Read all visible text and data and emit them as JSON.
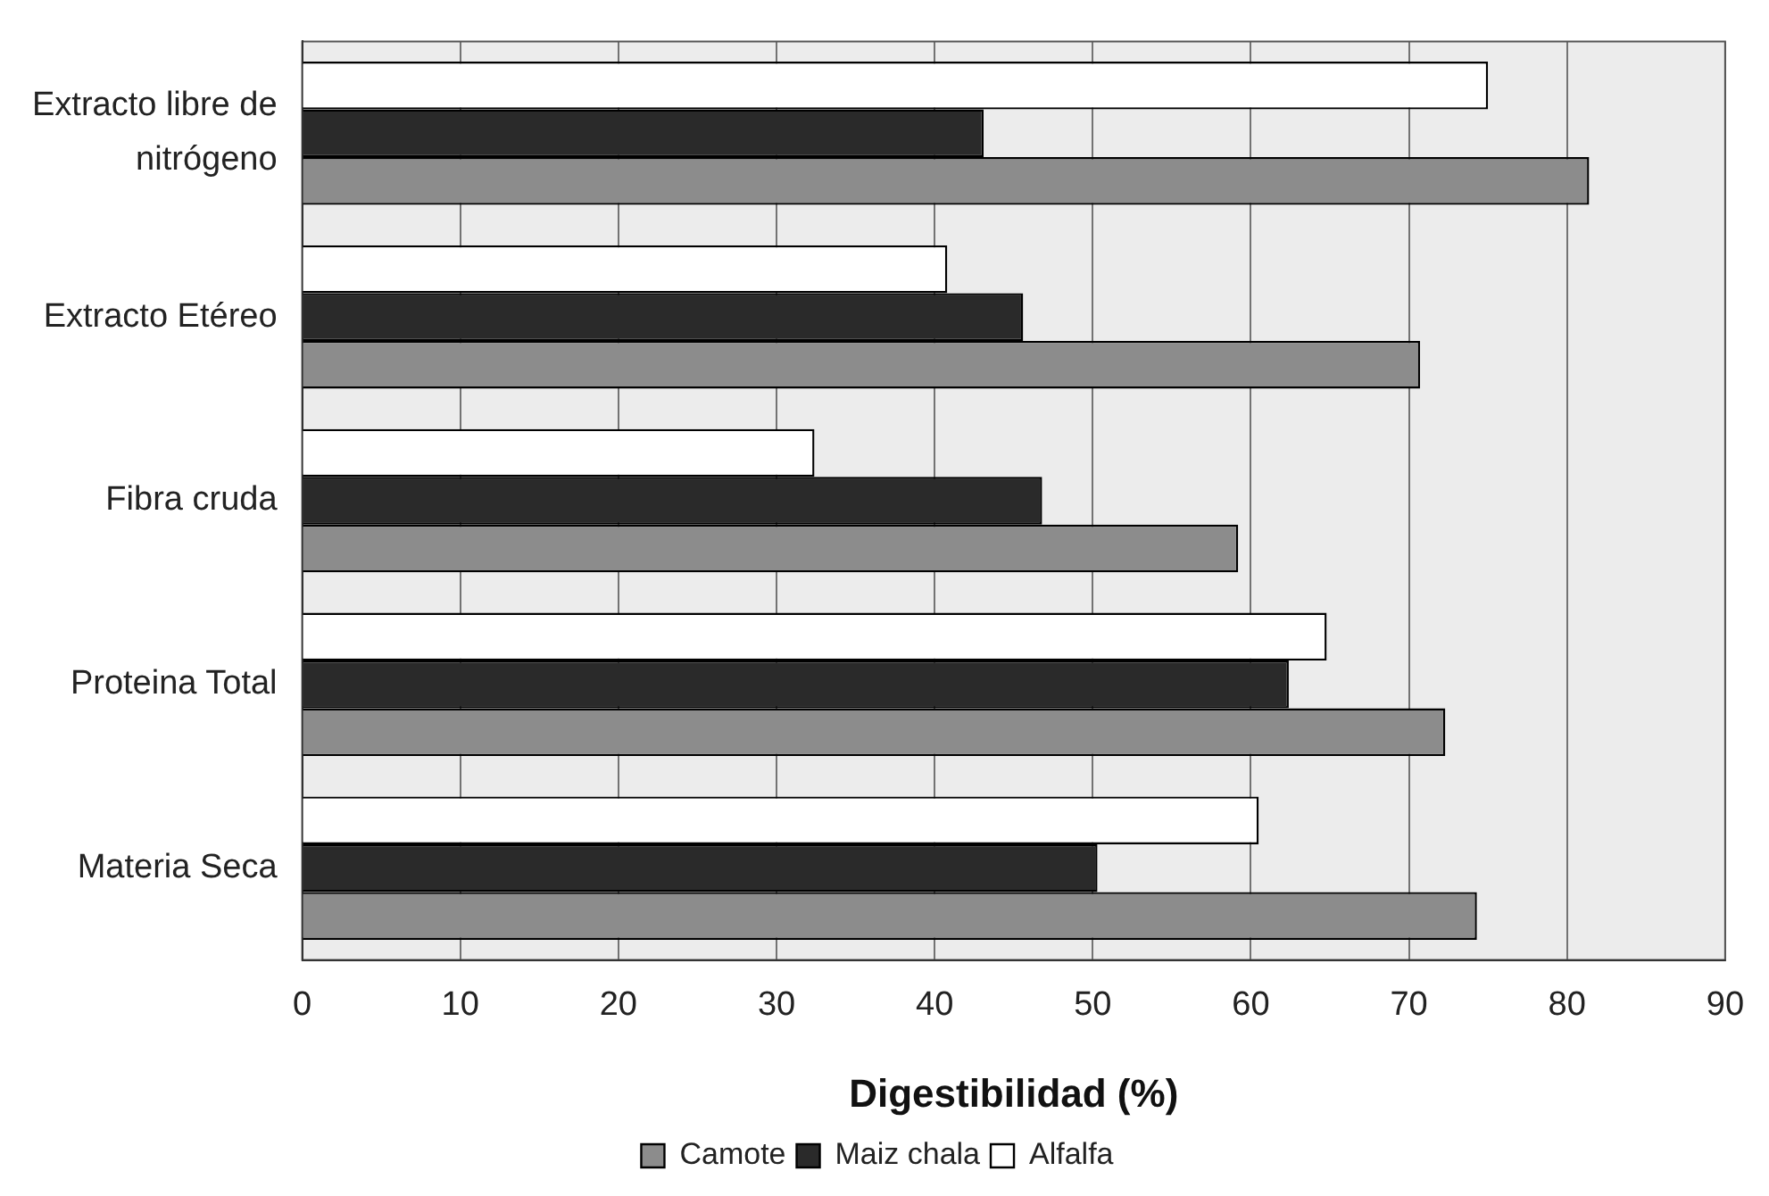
{
  "chart_data": {
    "type": "bar",
    "orientation": "horizontal",
    "xlabel": "Digestibilidad (%)",
    "categories": [
      "Extracto libre de nitrógeno",
      "Extracto Etéreo",
      "Fibra cruda",
      "Proteina Total",
      "Materia Seca"
    ],
    "series": [
      {
        "name": "Camote",
        "color": "#8c8c8c",
        "values": [
          81.4,
          70.7,
          59.2,
          72.3,
          74.3
        ]
      },
      {
        "name": "Maiz chala",
        "color": "#2a2a2a",
        "values": [
          43.1,
          45.6,
          46.8,
          62.4,
          50.3
        ]
      },
      {
        "name": "Alfalfa",
        "color": "#ffffff",
        "values": [
          75.0,
          40.8,
          32.4,
          64.8,
          60.5
        ]
      }
    ],
    "xlim": [
      0,
      90
    ],
    "xticks": [
      0,
      10,
      20,
      30,
      40,
      50,
      60,
      70,
      80,
      90
    ],
    "grid": "x",
    "legend": "bottom"
  }
}
